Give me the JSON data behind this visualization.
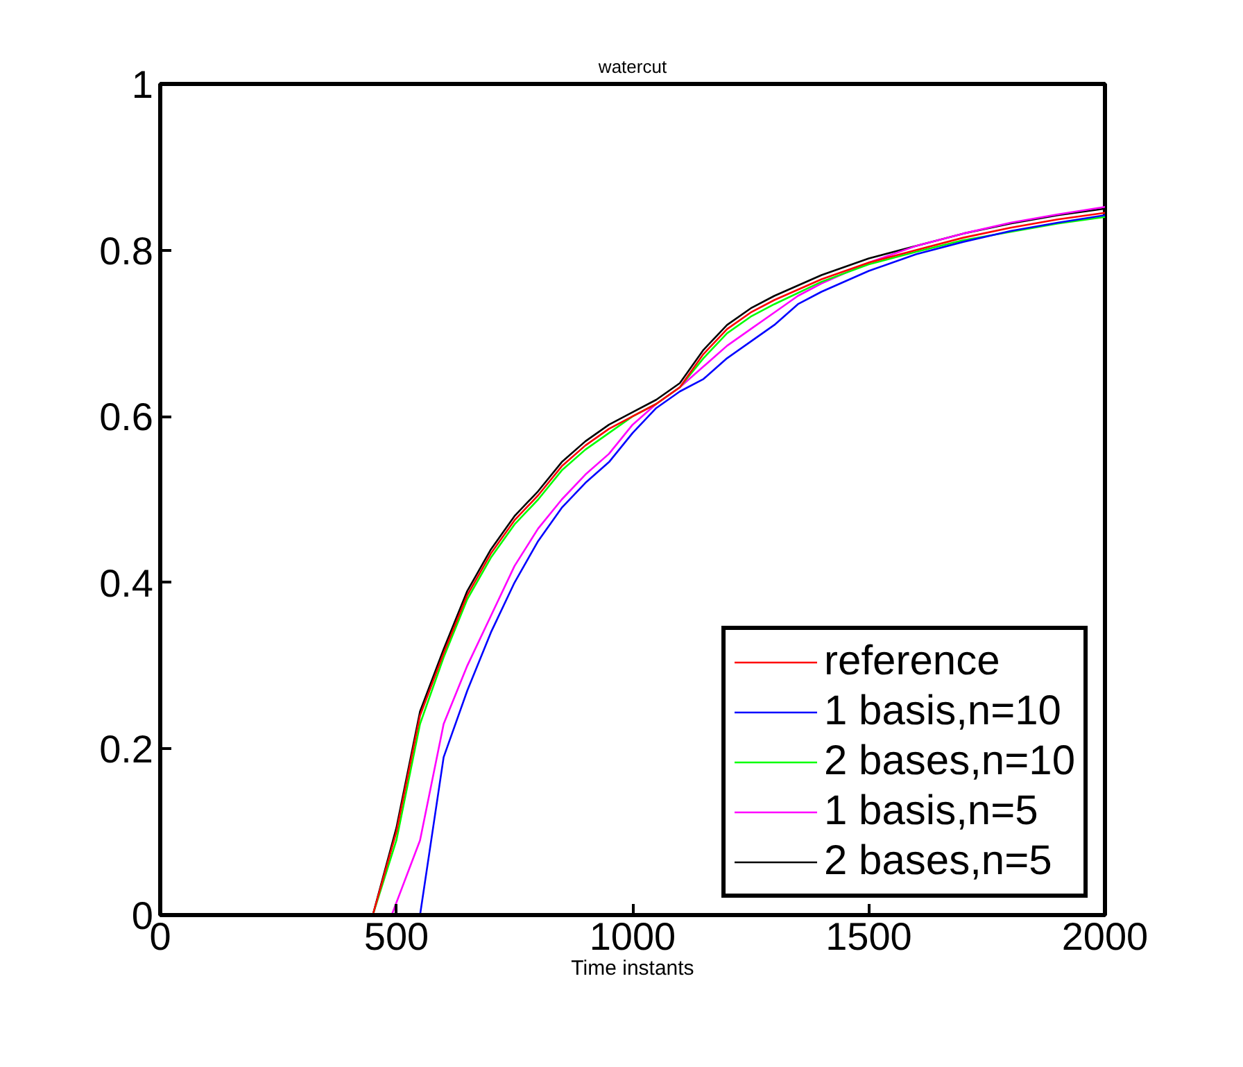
{
  "chart_data": {
    "type": "line",
    "title": "watercut",
    "xlabel": "Time instants",
    "xlim": [
      0,
      2000
    ],
    "ylim": [
      0,
      1
    ],
    "xticks": [
      0,
      500,
      1000,
      1500,
      2000
    ],
    "yticks": [
      0,
      0.2,
      0.4,
      0.6,
      0.8,
      1
    ],
    "grid": false,
    "legend": "bottom right",
    "x": [
      0,
      450,
      500,
      550,
      600,
      650,
      700,
      750,
      800,
      850,
      900,
      950,
      1000,
      1050,
      1100,
      1150,
      1200,
      1250,
      1300,
      1400,
      1500,
      1600,
      1700,
      1800,
      1900,
      2000
    ],
    "series": [
      {
        "name": "reference",
        "color": "#ff0000",
        "values": [
          0,
          0,
          0.1,
          0.24,
          0.315,
          0.385,
          0.435,
          0.475,
          0.505,
          0.54,
          0.565,
          0.585,
          0.6,
          0.615,
          0.635,
          0.675,
          0.705,
          0.725,
          0.74,
          0.765,
          0.785,
          0.8,
          0.815,
          0.827,
          0.837,
          0.845
        ]
      },
      {
        "name": "1 basis,n=10",
        "color": "#0000ff",
        "x": [
          0,
          550,
          600,
          650,
          700,
          750,
          800,
          850,
          900,
          950,
          1000,
          1050,
          1100,
          1150,
          1200,
          1250,
          1300,
          1350,
          1400,
          1500,
          1600,
          1700,
          1800,
          1900,
          2000
        ],
        "values": [
          0,
          0,
          0.19,
          0.27,
          0.34,
          0.4,
          0.45,
          0.49,
          0.52,
          0.545,
          0.58,
          0.61,
          0.63,
          0.645,
          0.67,
          0.69,
          0.71,
          0.735,
          0.75,
          0.775,
          0.795,
          0.81,
          0.823,
          0.833,
          0.842
        ]
      },
      {
        "name": "2 bases,n=10",
        "color": "#00ff00",
        "values": [
          0,
          0,
          0.09,
          0.23,
          0.31,
          0.38,
          0.43,
          0.47,
          0.5,
          0.535,
          0.56,
          0.58,
          0.6,
          0.615,
          0.635,
          0.67,
          0.7,
          0.72,
          0.735,
          0.762,
          0.783,
          0.798,
          0.812,
          0.822,
          0.832,
          0.84
        ]
      },
      {
        "name": "1 basis,n=5",
        "color": "#ff00ff",
        "x": [
          0,
          490,
          550,
          600,
          650,
          700,
          750,
          800,
          850,
          900,
          950,
          1000,
          1050,
          1100,
          1150,
          1200,
          1250,
          1300,
          1350,
          1400,
          1500,
          1600,
          1700,
          1800,
          1900,
          2000
        ],
        "values": [
          0,
          0,
          0.09,
          0.23,
          0.3,
          0.36,
          0.42,
          0.465,
          0.5,
          0.53,
          0.555,
          0.59,
          0.615,
          0.635,
          0.66,
          0.685,
          0.705,
          0.725,
          0.745,
          0.76,
          0.785,
          0.805,
          0.82,
          0.833,
          0.843,
          0.852
        ]
      },
      {
        "name": "2 bases,n=5",
        "color": "#000000",
        "values": [
          0,
          0,
          0.105,
          0.245,
          0.32,
          0.39,
          0.44,
          0.48,
          0.51,
          0.545,
          0.57,
          0.59,
          0.605,
          0.62,
          0.64,
          0.68,
          0.71,
          0.73,
          0.745,
          0.77,
          0.79,
          0.805,
          0.82,
          0.832,
          0.842,
          0.85
        ]
      }
    ]
  }
}
